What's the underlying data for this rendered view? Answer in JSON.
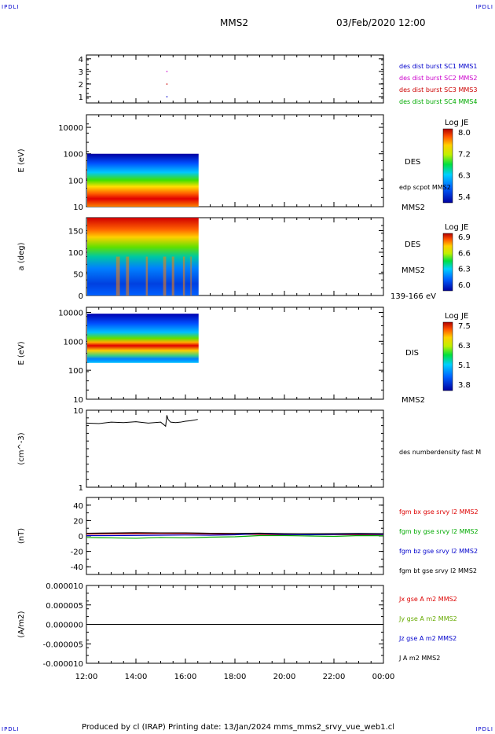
{
  "corner_labels": [
    "IPDLI",
    "IPDLI",
    "IPDLI",
    "IPDLI"
  ],
  "header": {
    "spacecraft": "MMS2",
    "datetime": "03/Feb/2020 12:00"
  },
  "footer": {
    "text": "Produced by cl (IRAP)   Printing date: 13/Jan/2024   mms_mms2_srvy_vue_web1.cl"
  },
  "colors": {
    "sc1": "#0000cc",
    "sc2": "#cc00cc",
    "sc3": "#cc0000",
    "sc4": "#00aa00",
    "bx": "#dd0000",
    "by": "#00aa00",
    "bz": "#0000cc",
    "bt": "#000000"
  },
  "chart_data": [
    {
      "type": "scatter",
      "panel": "burst",
      "ylim": [
        0.5,
        4.3
      ],
      "yticks": [
        "1",
        "2",
        "3",
        "4"
      ],
      "legend": [
        "des dist burst SC1 MMS1",
        "des dist burst SC2 MMS2",
        "des dist burst SC3 MMS3",
        "des dist burst SC4 MMS4"
      ],
      "points": [
        {
          "t": 15.25,
          "y": 1,
          "sc": 0
        },
        {
          "t": 15.25,
          "y": 2,
          "sc": 2
        },
        {
          "t": 15.25,
          "y": 3,
          "sc": 1
        }
      ]
    },
    {
      "type": "heatmap",
      "panel": "des_energy",
      "ylabel": "E (eV)",
      "log": true,
      "ylim": [
        10,
        30000
      ],
      "yticks": [
        "10",
        "100",
        "1000",
        "10000"
      ],
      "colorbar": {
        "title": "Log JE",
        "ticks": [
          "8.0",
          "7.2",
          "6.3",
          "5.4"
        ]
      },
      "side_labels": [
        "DES",
        "edp scpot MMS2",
        "MMS2"
      ],
      "data_window": [
        12.0,
        16.5
      ]
    },
    {
      "type": "heatmap",
      "panel": "des_pitch",
      "ylabel": "a (deg)",
      "ylim": [
        0,
        180
      ],
      "yticks": [
        "0",
        "50",
        "100",
        "150"
      ],
      "colorbar": {
        "title": "Log JE",
        "ticks": [
          "6.9",
          "6.6",
          "6.3",
          "6.0"
        ]
      },
      "side_labels": [
        "DES",
        "MMS2",
        "139-166 eV"
      ],
      "data_window": [
        12.0,
        16.5
      ]
    },
    {
      "type": "heatmap",
      "panel": "dis_energy",
      "ylabel": "E (eV)",
      "log": true,
      "ylim": [
        10,
        15000
      ],
      "yticks": [
        "10",
        "100",
        "1000",
        "10000"
      ],
      "colorbar": {
        "title": "Log JE",
        "ticks": [
          "7.5",
          "6.3",
          "5.1",
          "3.8"
        ]
      },
      "side_labels": [
        "DIS",
        "MMS2"
      ],
      "data_window": [
        12.0,
        16.5
      ]
    },
    {
      "type": "line",
      "panel": "density",
      "ylabel": "(cm^-3)",
      "log": true,
      "ylim": [
        1,
        10
      ],
      "yticks": [
        "1",
        "10"
      ],
      "legend": [
        "des numberdensity fast M"
      ],
      "t": [
        12.0,
        12.5,
        13.0,
        13.5,
        14.0,
        14.5,
        15.0,
        15.1,
        15.2,
        15.25,
        15.3,
        15.4,
        15.6,
        15.8,
        16.0,
        16.2,
        16.5
      ],
      "values": [
        6.8,
        6.7,
        7.0,
        6.9,
        7.1,
        6.8,
        7.0,
        6.6,
        6.2,
        8.6,
        7.6,
        7.0,
        6.9,
        7.0,
        7.2,
        7.3,
        7.6
      ]
    },
    {
      "type": "line",
      "panel": "fgm",
      "ylabel": "(nT)",
      "ylim": [
        -50,
        50
      ],
      "yticks": [
        "-40",
        "-20",
        "0",
        "20",
        "40"
      ],
      "legend": [
        "fgm bx gse srvy l2 MMS2",
        "fgm by gse srvy l2 MMS2",
        "fgm bz gse srvy l2 MMS2",
        "fgm bt gse srvy l2 MMS2"
      ],
      "t": [
        12,
        13,
        14,
        15,
        16,
        17,
        18,
        19,
        20,
        21,
        22,
        23,
        24
      ],
      "series": [
        {
          "name": "bx",
          "values": [
            2.5,
            2.8,
            3.0,
            3.2,
            3.0,
            2.6,
            2.2,
            2.0,
            1.5,
            1.6,
            1.8,
            1.6,
            1.5
          ]
        },
        {
          "name": "by",
          "values": [
            -2.0,
            -2.5,
            -3.0,
            -2.0,
            -2.5,
            -1.5,
            -1.0,
            0.5,
            0.5,
            0.0,
            -0.5,
            0.5,
            0.3
          ]
        },
        {
          "name": "bz",
          "values": [
            0.5,
            0.5,
            0.8,
            1.0,
            1.2,
            1.0,
            1.5,
            3.0,
            2.0,
            1.5,
            2.0,
            2.5,
            2.0
          ]
        },
        {
          "name": "bt",
          "values": [
            3.5,
            3.8,
            4.2,
            4.0,
            4.0,
            3.5,
            3.2,
            3.6,
            3.0,
            2.8,
            3.0,
            3.2,
            3.0
          ]
        }
      ]
    },
    {
      "type": "line",
      "panel": "current",
      "ylabel": "(A/m2)",
      "ylim": [
        -1e-05,
        1e-05
      ],
      "yticks": [
        "-0.000010",
        "-0.000005",
        "0.000000",
        "0.000005",
        "0.000010"
      ],
      "legend": [
        "Jx gse A m2 MMS2",
        "Jy gse A m2 MMS2",
        "Jz gse A m2 MMS2",
        "J A m2 MMS2"
      ],
      "t": [
        12,
        24
      ],
      "values": [
        0,
        0
      ]
    }
  ],
  "xaxis": {
    "xlim": [
      12,
      24
    ],
    "ticks": [
      "12:00",
      "14:00",
      "16:00",
      "18:00",
      "20:00",
      "22:00",
      "00:00"
    ]
  }
}
